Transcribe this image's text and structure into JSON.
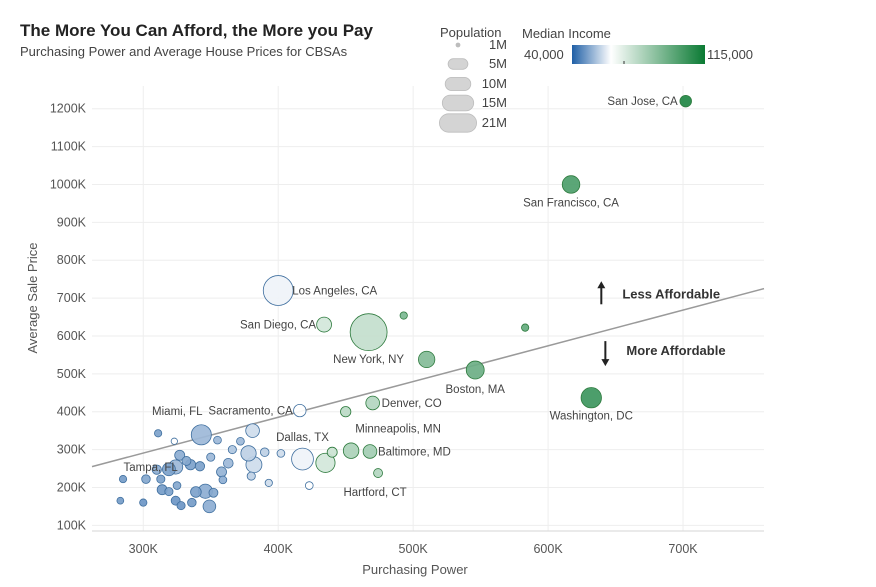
{
  "chart_data": {
    "type": "scatter",
    "title": "The More You Can Afford, the More you Pay",
    "subtitle": "Purchasing Power and Average House Prices for CBSAs",
    "xlabel": "Purchasing Power",
    "ylabel": "Average Sale Price",
    "xlim": [
      262000,
      760000
    ],
    "ylim": [
      85000,
      1260000
    ],
    "x_ticks": [
      300000,
      400000,
      500000,
      600000,
      700000
    ],
    "x_tick_labels": [
      "300K",
      "400K",
      "500K",
      "600K",
      "700K"
    ],
    "y_ticks": [
      100000,
      200000,
      300000,
      400000,
      500000,
      600000,
      700000,
      800000,
      900000,
      1000000,
      1100000,
      1200000
    ],
    "y_tick_labels": [
      "100K",
      "200K",
      "300K",
      "400K",
      "500K",
      "600K",
      "700K",
      "800K",
      "900K",
      "1000K",
      "1100K",
      "1200K"
    ],
    "grid": true,
    "trend_line": {
      "x": [
        262000,
        760000
      ],
      "y": [
        255000,
        725000
      ]
    },
    "size_legend": {
      "title": "Population",
      "items": [
        {
          "label": "1M",
          "value": 1
        },
        {
          "label": "5M",
          "value": 5
        },
        {
          "label": "10M",
          "value": 10
        },
        {
          "label": "15M",
          "value": 15
        },
        {
          "label": "21M",
          "value": 21
        }
      ]
    },
    "color_legend": {
      "title": "Median Income",
      "min_label": "40,000",
      "max_label": "115,000",
      "min": 40000,
      "max": 115000,
      "mid": 62000,
      "low_color": "#1f5fa6",
      "mid_color": "#ffffff",
      "high_color": "#0a7a33"
    },
    "annotations": [
      {
        "text": "Less Affordable",
        "direction": "up",
        "x": 655000,
        "y": 710000
      },
      {
        "text": "More Affordable",
        "direction": "down",
        "x": 658000,
        "y": 560000
      }
    ],
    "points": [
      {
        "name": "San Jose, CA",
        "x": 702000,
        "y": 1220000,
        "pop": 2.0,
        "income": 110000
      },
      {
        "name": "San Francisco, CA",
        "x": 617000,
        "y": 1000000,
        "pop": 4.6,
        "income": 98000
      },
      {
        "name": "Washington, DC",
        "x": 632000,
        "y": 437000,
        "pop": 6.2,
        "income": 102000
      },
      {
        "name": "Boston, MA",
        "x": 546000,
        "y": 510000,
        "pop": 4.8,
        "income": 90000
      },
      {
        "name": "",
        "x": 583000,
        "y": 622000,
        "pop": 0.8,
        "income": 92000
      },
      {
        "name": "",
        "x": 493000,
        "y": 654000,
        "pop": 0.8,
        "income": 86000
      },
      {
        "name": "",
        "x": 510000,
        "y": 538000,
        "pop": 4.0,
        "income": 84000
      },
      {
        "name": "Los Angeles, CA",
        "x": 400000,
        "y": 720000,
        "pop": 13.3,
        "income": 60000
      },
      {
        "name": "San Diego, CA",
        "x": 434000,
        "y": 630000,
        "pop": 3.3,
        "income": 64000
      },
      {
        "name": "New York, NY",
        "x": 467000,
        "y": 610000,
        "pop": 20.3,
        "income": 68000
      },
      {
        "name": "Sacramento, CA",
        "x": 416000,
        "y": 403000,
        "pop": 2.3,
        "income": 62000
      },
      {
        "name": "Denver, CO",
        "x": 470000,
        "y": 423000,
        "pop": 2.8,
        "income": 72000
      },
      {
        "name": "",
        "x": 450000,
        "y": 400000,
        "pop": 1.6,
        "income": 70000
      },
      {
        "name": "Miami, FL",
        "x": 343000,
        "y": 339000,
        "pop": 6.0,
        "income": 50000
      },
      {
        "name": "Dallas, TX",
        "x": 418000,
        "y": 275000,
        "pop": 7.1,
        "income": 60000
      },
      {
        "name": "",
        "x": 435000,
        "y": 265000,
        "pop": 5.5,
        "income": 64000
      },
      {
        "name": "",
        "x": 440000,
        "y": 293000,
        "pop": 1.5,
        "income": 66000
      },
      {
        "name": "Minneapolis, MN",
        "x": 454000,
        "y": 297000,
        "pop": 3.6,
        "income": 74000
      },
      {
        "name": "Baltimore, MD",
        "x": 468000,
        "y": 295000,
        "pop": 2.8,
        "income": 76000
      },
      {
        "name": "Hartford, CT",
        "x": 474000,
        "y": 238000,
        "pop": 1.2,
        "income": 72000
      },
      {
        "name": "",
        "x": 423000,
        "y": 205000,
        "pop": 0.9,
        "income": 62000
      },
      {
        "name": "Tampa, FL",
        "x": 324000,
        "y": 254000,
        "pop": 3.0,
        "income": 50000
      },
      {
        "name": "",
        "x": 381000,
        "y": 350000,
        "pop": 2.8,
        "income": 56000
      },
      {
        "name": "",
        "x": 372000,
        "y": 322000,
        "pop": 0.9,
        "income": 50000
      },
      {
        "name": "",
        "x": 378000,
        "y": 290000,
        "pop": 3.5,
        "income": 54000
      },
      {
        "name": "",
        "x": 382000,
        "y": 260000,
        "pop": 3.8,
        "income": 56000
      },
      {
        "name": "",
        "x": 390000,
        "y": 293000,
        "pop": 1.1,
        "income": 54000
      },
      {
        "name": "",
        "x": 402000,
        "y": 290000,
        "pop": 0.9,
        "income": 56000
      },
      {
        "name": "",
        "x": 380000,
        "y": 230000,
        "pop": 1.0,
        "income": 54000
      },
      {
        "name": "",
        "x": 393000,
        "y": 212000,
        "pop": 0.8,
        "income": 56000
      },
      {
        "name": "",
        "x": 366000,
        "y": 300000,
        "pop": 1.0,
        "income": 52000
      },
      {
        "name": "",
        "x": 363000,
        "y": 264000,
        "pop": 1.4,
        "income": 50000
      },
      {
        "name": "",
        "x": 355000,
        "y": 325000,
        "pop": 0.9,
        "income": 50000
      },
      {
        "name": "",
        "x": 358000,
        "y": 241000,
        "pop": 1.5,
        "income": 49000
      },
      {
        "name": "",
        "x": 350000,
        "y": 280000,
        "pop": 1.0,
        "income": 50000
      },
      {
        "name": "",
        "x": 346000,
        "y": 190000,
        "pop": 3.0,
        "income": 48000
      },
      {
        "name": "",
        "x": 342000,
        "y": 256000,
        "pop": 1.3,
        "income": 46000
      },
      {
        "name": "",
        "x": 335000,
        "y": 260000,
        "pop": 1.6,
        "income": 46000
      },
      {
        "name": "",
        "x": 327000,
        "y": 285000,
        "pop": 1.5,
        "income": 48000
      },
      {
        "name": "",
        "x": 332000,
        "y": 270000,
        "pop": 1.2,
        "income": 47000
      },
      {
        "name": "",
        "x": 323000,
        "y": 322000,
        "pop": 0.6,
        "income": 62000
      },
      {
        "name": "",
        "x": 311000,
        "y": 343000,
        "pop": 0.8,
        "income": 46000
      },
      {
        "name": "",
        "x": 310000,
        "y": 247000,
        "pop": 1.3,
        "income": 48000
      },
      {
        "name": "",
        "x": 319000,
        "y": 248000,
        "pop": 2.5,
        "income": 46000
      },
      {
        "name": "",
        "x": 313000,
        "y": 222000,
        "pop": 1.0,
        "income": 46000
      },
      {
        "name": "",
        "x": 302000,
        "y": 222000,
        "pop": 1.1,
        "income": 47000
      },
      {
        "name": "",
        "x": 285000,
        "y": 222000,
        "pop": 0.8,
        "income": 45000
      },
      {
        "name": "",
        "x": 314000,
        "y": 194000,
        "pop": 1.5,
        "income": 45000
      },
      {
        "name": "",
        "x": 319000,
        "y": 189000,
        "pop": 1.0,
        "income": 46000
      },
      {
        "name": "",
        "x": 325000,
        "y": 205000,
        "pop": 0.9,
        "income": 47000
      },
      {
        "name": "",
        "x": 324000,
        "y": 165000,
        "pop": 1.2,
        "income": 44000
      },
      {
        "name": "",
        "x": 328000,
        "y": 152000,
        "pop": 1.0,
        "income": 44000
      },
      {
        "name": "",
        "x": 336000,
        "y": 160000,
        "pop": 1.1,
        "income": 45000
      },
      {
        "name": "",
        "x": 339000,
        "y": 188000,
        "pop": 1.7,
        "income": 46000
      },
      {
        "name": "",
        "x": 349000,
        "y": 150000,
        "pop": 2.4,
        "income": 48000
      },
      {
        "name": "",
        "x": 352000,
        "y": 186000,
        "pop": 1.2,
        "income": 47000
      },
      {
        "name": "",
        "x": 359000,
        "y": 220000,
        "pop": 0.9,
        "income": 48000
      },
      {
        "name": "",
        "x": 283000,
        "y": 165000,
        "pop": 0.7,
        "income": 45000
      },
      {
        "name": "",
        "x": 300000,
        "y": 160000,
        "pop": 0.8,
        "income": 44000
      }
    ]
  }
}
